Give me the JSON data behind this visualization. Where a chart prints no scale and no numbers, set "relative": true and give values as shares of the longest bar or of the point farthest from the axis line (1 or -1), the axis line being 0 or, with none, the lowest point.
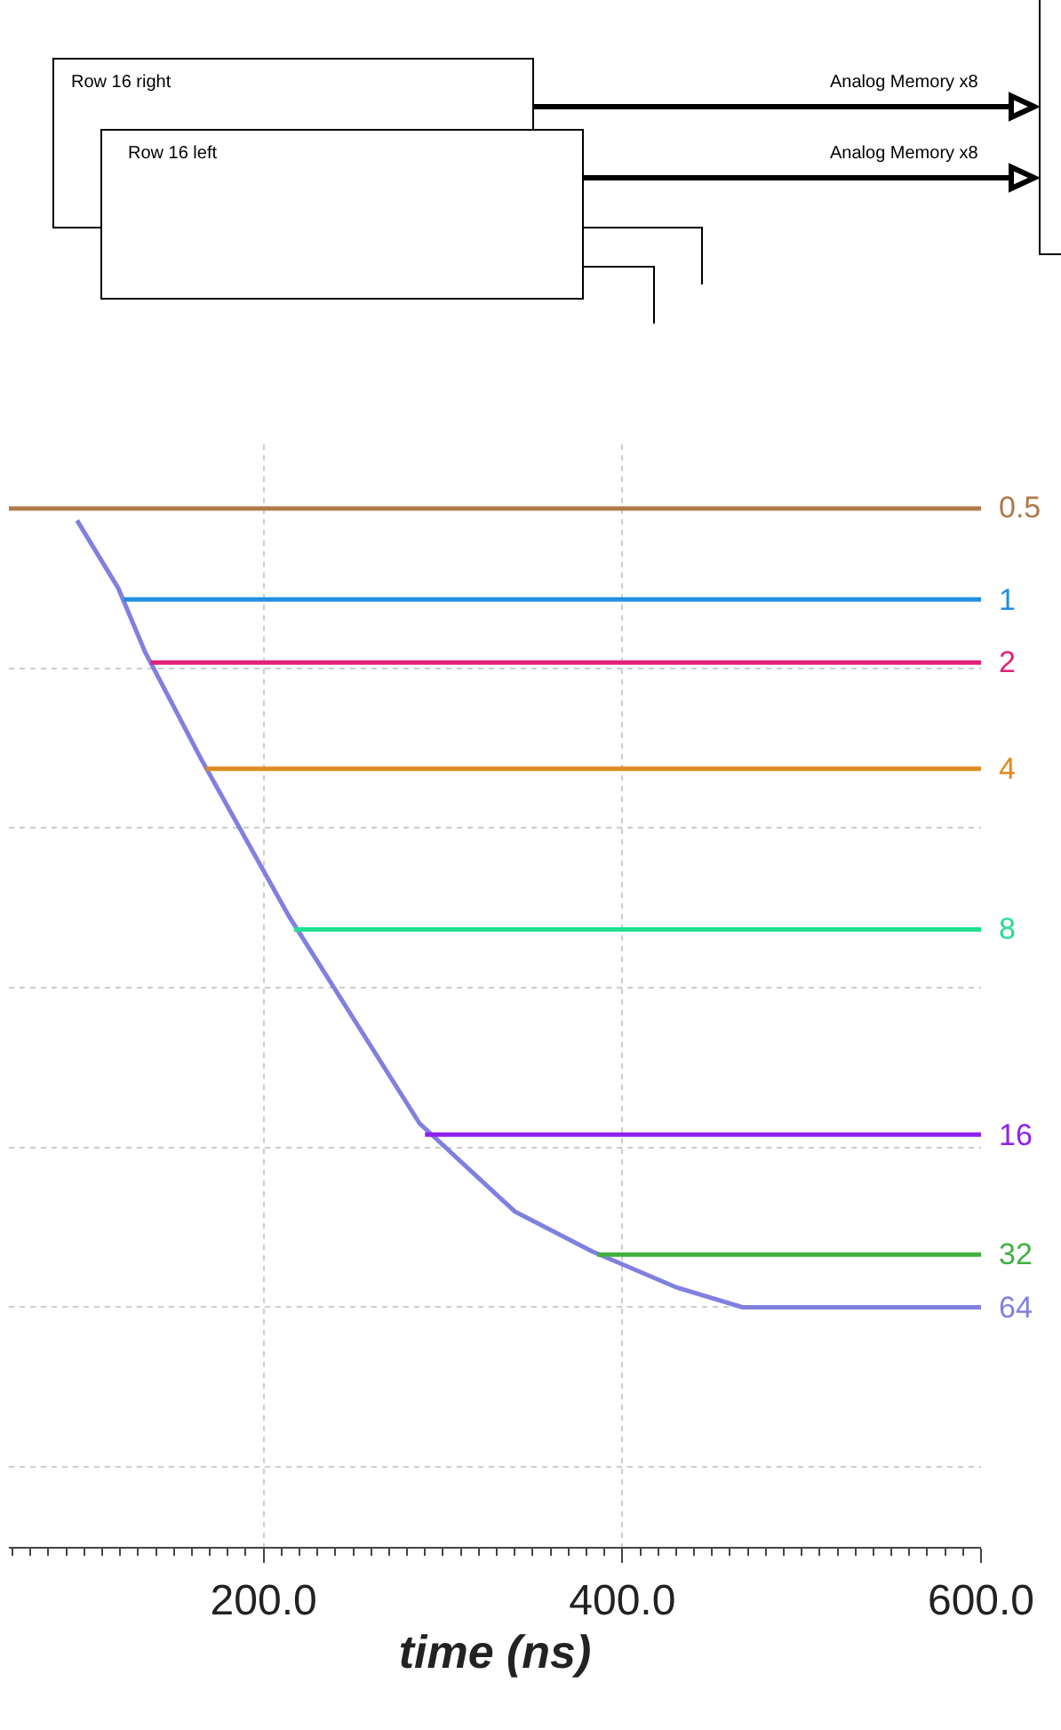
{
  "chart_data": [
    {
      "type": "other",
      "annotations": [
        "Row 16 right",
        "Analog Memory x8",
        "Row 16 left",
        "Analog Memory x8"
      ]
    },
    {
      "type": "line",
      "relative": true,
      "xlabel": "time (ns)",
      "xlim": [
        58,
        600
      ],
      "xticks": [
        {
          "value": 200,
          "label": "200.0"
        },
        {
          "value": 400,
          "label": "400.0"
        },
        {
          "value": 600,
          "label": "600.0"
        }
      ],
      "grid": true,
      "legend": false,
      "marker": "none",
      "line_style": "solid",
      "series": [
        {
          "name": "64",
          "color": "#8080e0",
          "x": [
            96,
            119,
            134,
            165,
            214,
            287,
            340,
            383,
            430,
            467,
            600
          ],
          "values": [
            0.985,
            0.9,
            0.82,
            0.687,
            0.49,
            0.23,
            0.12,
            0.07,
            0.025,
            0,
            0
          ]
        },
        {
          "name": "0.5",
          "color": "#b07a4a",
          "x": [
            58,
            600
          ],
          "values": [
            1,
            1
          ]
        },
        {
          "name": "1",
          "color": "#1f8fe0",
          "x": [
            122,
            600
          ],
          "values": [
            0.886,
            0.886
          ]
        },
        {
          "name": "2",
          "color": "#e0207a",
          "x": [
            137,
            600
          ],
          "values": [
            0.807,
            0.807
          ]
        },
        {
          "name": "4",
          "color": "#e08a20",
          "x": [
            168,
            600
          ],
          "values": [
            0.674,
            0.674
          ]
        },
        {
          "name": "8",
          "color": "#20e090",
          "x": [
            217,
            600
          ],
          "values": [
            0.473,
            0.473
          ]
        },
        {
          "name": "16",
          "color": "#9020f0",
          "x": [
            290,
            600
          ],
          "values": [
            0.216,
            0.216
          ]
        },
        {
          "name": "32",
          "color": "#40b040",
          "x": [
            386,
            600
          ],
          "values": [
            0.066,
            0.066
          ]
        }
      ]
    }
  ]
}
